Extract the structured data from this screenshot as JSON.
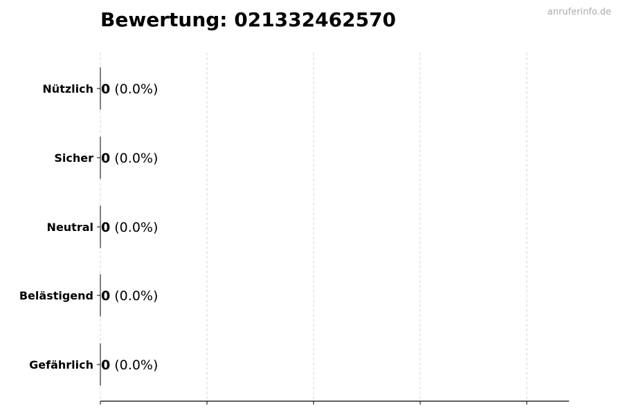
{
  "chart_data": {
    "type": "bar",
    "orientation": "horizontal",
    "title": "Bewertung: 021332462570",
    "categories": [
      "Nützlich",
      "Sicher",
      "Neutral",
      "Belästigend",
      "Gefährlich"
    ],
    "values": [
      0,
      0,
      0,
      0,
      0
    ],
    "value_labels": [
      {
        "count": "0",
        "percent": "(0.0%)"
      },
      {
        "count": "0",
        "percent": "(0.0%)"
      },
      {
        "count": "0",
        "percent": "(0.0%)"
      },
      {
        "count": "0",
        "percent": "(0.0%)"
      },
      {
        "count": "0",
        "percent": "(0.0%)"
      }
    ],
    "xlabel": "",
    "ylabel": "",
    "x_tick_count": 5,
    "x_tick_labels_shown": false,
    "grid": "vertical dashed",
    "grid_color": "#cccccc",
    "bar_edge_color": "#000000"
  },
  "watermark": "anruferinfo.de"
}
